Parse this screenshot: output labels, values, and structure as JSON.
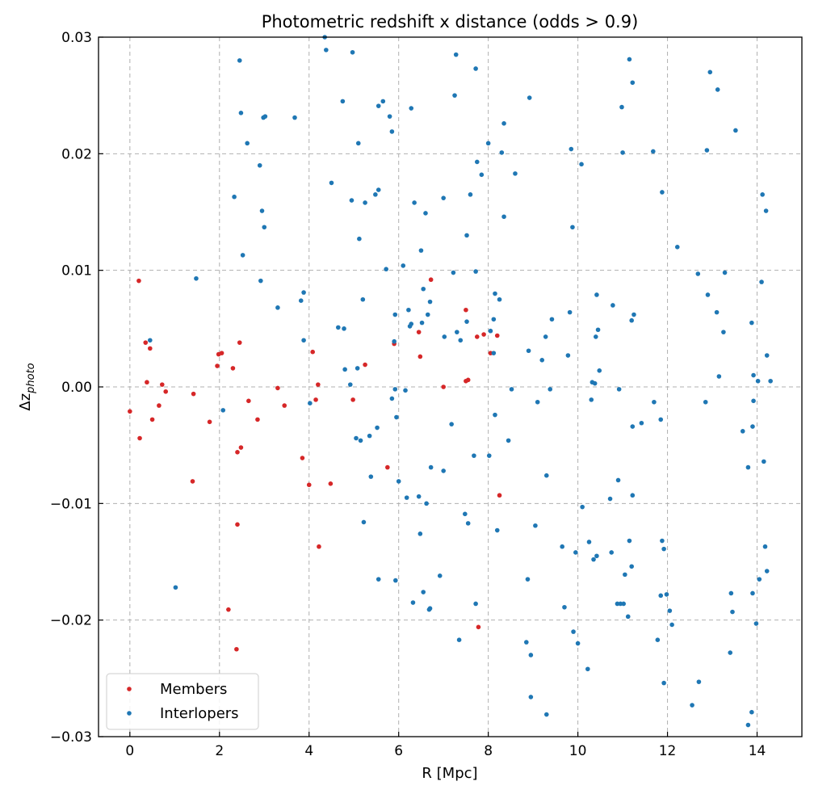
{
  "chart_data": {
    "type": "scatter",
    "title": "Photometric redshift x distance (odds > 0.9)",
    "xlabel": "R [Mpc]",
    "ylabel_main": "Δz",
    "ylabel_sub": "photo",
    "xlim": [
      -0.7,
      15.0
    ],
    "ylim": [
      -0.03,
      0.03
    ],
    "xticks": [
      0,
      2,
      4,
      6,
      8,
      10,
      12,
      14
    ],
    "xtick_labels": [
      "0",
      "2",
      "4",
      "6",
      "8",
      "10",
      "12",
      "14"
    ],
    "yticks": [
      -0.03,
      -0.02,
      -0.01,
      0.0,
      0.01,
      0.02,
      0.03
    ],
    "ytick_labels": [
      "−0.03",
      "−0.02",
      "−0.01",
      "0.00",
      "0.01",
      "0.02",
      "0.03"
    ],
    "grid": true,
    "legend_position": "lower-left",
    "series": [
      {
        "name": "Members",
        "color": "#d62728",
        "points": [
          [
            0.0,
            -0.0021
          ],
          [
            0.2,
            0.0091
          ],
          [
            0.22,
            -0.0044
          ],
          [
            0.35,
            0.0038
          ],
          [
            0.38,
            0.0004
          ],
          [
            0.45,
            0.0033
          ],
          [
            0.5,
            -0.0028
          ],
          [
            0.65,
            -0.0016
          ],
          [
            0.72,
            0.0002
          ],
          [
            0.8,
            -0.0004
          ],
          [
            1.4,
            -0.0081
          ],
          [
            1.42,
            -0.0006
          ],
          [
            1.78,
            -0.003
          ],
          [
            1.95,
            0.0018
          ],
          [
            1.98,
            0.0028
          ],
          [
            2.05,
            0.0029
          ],
          [
            2.2,
            -0.0191
          ],
          [
            2.3,
            0.0016
          ],
          [
            2.38,
            -0.0225
          ],
          [
            2.4,
            -0.0056
          ],
          [
            2.4,
            -0.0118
          ],
          [
            2.45,
            0.0038
          ],
          [
            2.48,
            -0.0052
          ],
          [
            2.65,
            -0.0012
          ],
          [
            2.85,
            -0.0028
          ],
          [
            3.3,
            -0.0001
          ],
          [
            3.45,
            -0.0016
          ],
          [
            3.85,
            -0.0061
          ],
          [
            4.0,
            -0.0084
          ],
          [
            4.08,
            0.003
          ],
          [
            4.15,
            -0.0011
          ],
          [
            4.2,
            0.0002
          ],
          [
            4.22,
            -0.0137
          ],
          [
            4.48,
            -0.0083
          ],
          [
            4.98,
            -0.0011
          ],
          [
            5.25,
            0.0019
          ],
          [
            5.75,
            -0.0069
          ],
          [
            5.9,
            0.0037
          ],
          [
            6.45,
            0.0047
          ],
          [
            6.48,
            0.0026
          ],
          [
            6.72,
            0.0092
          ],
          [
            7.0,
            0.0
          ],
          [
            7.5,
            0.0066
          ],
          [
            7.5,
            0.0005
          ],
          [
            7.55,
            0.0006
          ],
          [
            7.75,
            0.0043
          ],
          [
            7.78,
            -0.0206
          ],
          [
            7.9,
            0.0045
          ],
          [
            8.05,
            0.0029
          ],
          [
            8.2,
            0.0044
          ],
          [
            8.25,
            -0.0093
          ]
        ]
      },
      {
        "name": "Interlopers",
        "color": "#1f77b4",
        "points": [
          [
            0.45,
            0.004
          ],
          [
            1.02,
            -0.0172
          ],
          [
            1.48,
            0.0093
          ],
          [
            2.08,
            -0.002
          ],
          [
            2.33,
            0.0163
          ],
          [
            2.45,
            0.028
          ],
          [
            2.48,
            0.0235
          ],
          [
            2.52,
            0.0113
          ],
          [
            2.62,
            0.0209
          ],
          [
            2.9,
            0.019
          ],
          [
            2.92,
            0.0091
          ],
          [
            2.95,
            0.0151
          ],
          [
            2.98,
            0.0231
          ],
          [
            3.0,
            0.0137
          ],
          [
            3.02,
            0.0232
          ],
          [
            3.3,
            0.0068
          ],
          [
            3.68,
            0.0231
          ],
          [
            3.82,
            0.0074
          ],
          [
            3.88,
            0.0081
          ],
          [
            3.88,
            0.004
          ],
          [
            4.02,
            -0.0014
          ],
          [
            4.35,
            0.03
          ],
          [
            4.38,
            0.0289
          ],
          [
            4.5,
            0.0175
          ],
          [
            4.65,
            0.0051
          ],
          [
            4.75,
            0.0245
          ],
          [
            4.78,
            0.005
          ],
          [
            4.8,
            0.0015
          ],
          [
            4.92,
            0.0002
          ],
          [
            4.95,
            0.016
          ],
          [
            4.97,
            0.0287
          ],
          [
            5.05,
            -0.0044
          ],
          [
            5.08,
            0.0016
          ],
          [
            5.1,
            0.0209
          ],
          [
            5.12,
            0.0127
          ],
          [
            5.15,
            -0.0046
          ],
          [
            5.2,
            0.0075
          ],
          [
            5.22,
            -0.0116
          ],
          [
            5.25,
            0.0158
          ],
          [
            5.35,
            -0.0042
          ],
          [
            5.38,
            -0.0077
          ],
          [
            5.48,
            0.0165
          ],
          [
            5.52,
            -0.0035
          ],
          [
            5.55,
            0.0241
          ],
          [
            5.55,
            0.0169
          ],
          [
            5.55,
            -0.0165
          ],
          [
            5.65,
            0.0245
          ],
          [
            5.72,
            0.0101
          ],
          [
            5.8,
            0.0232
          ],
          [
            5.85,
            -0.001
          ],
          [
            5.85,
            0.0219
          ],
          [
            5.9,
            0.0039
          ],
          [
            5.92,
            0.0062
          ],
          [
            5.92,
            -0.0002
          ],
          [
            5.93,
            -0.0166
          ],
          [
            5.95,
            -0.0026
          ],
          [
            6.0,
            -0.0081
          ],
          [
            6.1,
            0.0104
          ],
          [
            6.15,
            -0.0003
          ],
          [
            6.18,
            -0.0095
          ],
          [
            6.22,
            0.0066
          ],
          [
            6.25,
            0.0052
          ],
          [
            6.28,
            0.0054
          ],
          [
            6.28,
            0.0239
          ],
          [
            6.32,
            -0.0185
          ],
          [
            6.35,
            0.0158
          ],
          [
            6.45,
            -0.0094
          ],
          [
            6.48,
            -0.0126
          ],
          [
            6.5,
            0.0117
          ],
          [
            6.52,
            0.0055
          ],
          [
            6.55,
            0.0084
          ],
          [
            6.55,
            -0.0176
          ],
          [
            6.6,
            0.0149
          ],
          [
            6.62,
            -0.01
          ],
          [
            6.65,
            0.0062
          ],
          [
            6.68,
            -0.0191
          ],
          [
            6.7,
            0.0073
          ],
          [
            6.7,
            -0.019
          ],
          [
            6.72,
            -0.0069
          ],
          [
            6.92,
            -0.0162
          ],
          [
            7.0,
            0.0162
          ],
          [
            7.0,
            -0.0072
          ],
          [
            7.02,
            0.0043
          ],
          [
            7.18,
            -0.0032
          ],
          [
            7.22,
            0.0098
          ],
          [
            7.25,
            0.025
          ],
          [
            7.28,
            0.0285
          ],
          [
            7.3,
            0.0047
          ],
          [
            7.35,
            -0.0217
          ],
          [
            7.38,
            0.004
          ],
          [
            7.48,
            -0.0109
          ],
          [
            7.52,
            0.0056
          ],
          [
            7.52,
            0.013
          ],
          [
            7.55,
            -0.0117
          ],
          [
            7.6,
            0.0165
          ],
          [
            7.68,
            -0.0059
          ],
          [
            7.72,
            0.0273
          ],
          [
            7.72,
            0.0099
          ],
          [
            7.72,
            -0.0186
          ],
          [
            7.75,
            0.0193
          ],
          [
            7.85,
            0.0182
          ],
          [
            8.0,
            0.0209
          ],
          [
            8.02,
            -0.0059
          ],
          [
            8.05,
            0.0048
          ],
          [
            8.12,
            0.0029
          ],
          [
            8.12,
            0.0058
          ],
          [
            8.15,
            0.008
          ],
          [
            8.15,
            -0.0024
          ],
          [
            8.2,
            -0.0123
          ],
          [
            8.25,
            0.0075
          ],
          [
            8.3,
            0.0201
          ],
          [
            8.35,
            0.0226
          ],
          [
            8.35,
            0.0146
          ],
          [
            8.45,
            -0.0046
          ],
          [
            8.52,
            -0.0002
          ],
          [
            8.6,
            0.0183
          ],
          [
            8.85,
            -0.0219
          ],
          [
            8.88,
            -0.0165
          ],
          [
            8.9,
            0.0031
          ],
          [
            8.92,
            0.0248
          ],
          [
            8.95,
            -0.023
          ],
          [
            8.95,
            -0.0266
          ],
          [
            9.05,
            -0.0119
          ],
          [
            9.1,
            -0.0013
          ],
          [
            9.2,
            0.0023
          ],
          [
            9.28,
            0.0043
          ],
          [
            9.3,
            -0.0076
          ],
          [
            9.3,
            -0.0281
          ],
          [
            9.38,
            -0.0002
          ],
          [
            9.42,
            0.0058
          ],
          [
            9.65,
            -0.0137
          ],
          [
            9.7,
            -0.0189
          ],
          [
            9.78,
            0.0027
          ],
          [
            9.82,
            0.0064
          ],
          [
            9.85,
            0.0204
          ],
          [
            9.88,
            0.0137
          ],
          [
            9.9,
            -0.021
          ],
          [
            9.95,
            -0.0142
          ],
          [
            10.0,
            -0.022
          ],
          [
            10.08,
            0.0191
          ],
          [
            10.1,
            -0.0103
          ],
          [
            10.22,
            -0.0242
          ],
          [
            10.25,
            -0.0133
          ],
          [
            10.3,
            -0.0011
          ],
          [
            10.32,
            0.0004
          ],
          [
            10.35,
            -0.0148
          ],
          [
            10.38,
            0.0003
          ],
          [
            10.4,
            0.0043
          ],
          [
            10.42,
            -0.0145
          ],
          [
            10.42,
            0.0079
          ],
          [
            10.45,
            0.0049
          ],
          [
            10.48,
            0.0014
          ],
          [
            10.72,
            -0.0096
          ],
          [
            10.75,
            -0.0142
          ],
          [
            10.78,
            0.007
          ],
          [
            10.88,
            -0.0186
          ],
          [
            10.9,
            -0.008
          ],
          [
            10.92,
            -0.0002
          ],
          [
            10.95,
            -0.0186
          ],
          [
            10.98,
            0.024
          ],
          [
            11.0,
            0.0201
          ],
          [
            11.02,
            -0.0186
          ],
          [
            11.05,
            -0.0161
          ],
          [
            11.12,
            -0.0197
          ],
          [
            11.15,
            0.0281
          ],
          [
            11.15,
            -0.0132
          ],
          [
            11.2,
            0.0057
          ],
          [
            11.2,
            -0.0154
          ],
          [
            11.22,
            0.0261
          ],
          [
            11.22,
            -0.0093
          ],
          [
            11.22,
            -0.0034
          ],
          [
            11.25,
            0.0062
          ],
          [
            11.42,
            -0.0031
          ],
          [
            11.68,
            0.0202
          ],
          [
            11.7,
            -0.0013
          ],
          [
            11.78,
            -0.0217
          ],
          [
            11.85,
            -0.0179
          ],
          [
            11.85,
            -0.0028
          ],
          [
            11.88,
            0.0167
          ],
          [
            11.88,
            -0.0132
          ],
          [
            11.92,
            -0.0139
          ],
          [
            11.92,
            -0.0254
          ],
          [
            11.98,
            -0.0178
          ],
          [
            12.05,
            -0.0192
          ],
          [
            12.1,
            -0.0204
          ],
          [
            12.22,
            0.012
          ],
          [
            12.55,
            -0.0273
          ],
          [
            12.68,
            0.0097
          ],
          [
            12.7,
            -0.0253
          ],
          [
            12.85,
            -0.0013
          ],
          [
            12.88,
            0.0203
          ],
          [
            12.9,
            0.0079
          ],
          [
            12.95,
            0.027
          ],
          [
            13.1,
            0.0064
          ],
          [
            13.12,
            0.0255
          ],
          [
            13.15,
            0.0009
          ],
          [
            13.25,
            0.0047
          ],
          [
            13.28,
            0.0098
          ],
          [
            13.4,
            -0.0228
          ],
          [
            13.42,
            -0.0177
          ],
          [
            13.45,
            -0.0193
          ],
          [
            13.52,
            0.022
          ],
          [
            13.68,
            -0.0038
          ],
          [
            13.8,
            -0.0069
          ],
          [
            13.8,
            -0.029
          ],
          [
            13.88,
            0.0055
          ],
          [
            13.88,
            -0.0279
          ],
          [
            13.9,
            -0.0034
          ],
          [
            13.9,
            -0.0177
          ],
          [
            13.92,
            0.001
          ],
          [
            13.92,
            -0.0012
          ],
          [
            13.98,
            -0.0203
          ],
          [
            14.02,
            0.0005
          ],
          [
            14.05,
            -0.0165
          ],
          [
            14.1,
            0.009
          ],
          [
            14.12,
            0.0165
          ],
          [
            14.15,
            -0.0064
          ],
          [
            14.18,
            -0.0137
          ],
          [
            14.2,
            0.0151
          ],
          [
            14.22,
            -0.0158
          ],
          [
            14.22,
            0.0027
          ],
          [
            14.3,
            0.0005
          ]
        ]
      }
    ]
  }
}
